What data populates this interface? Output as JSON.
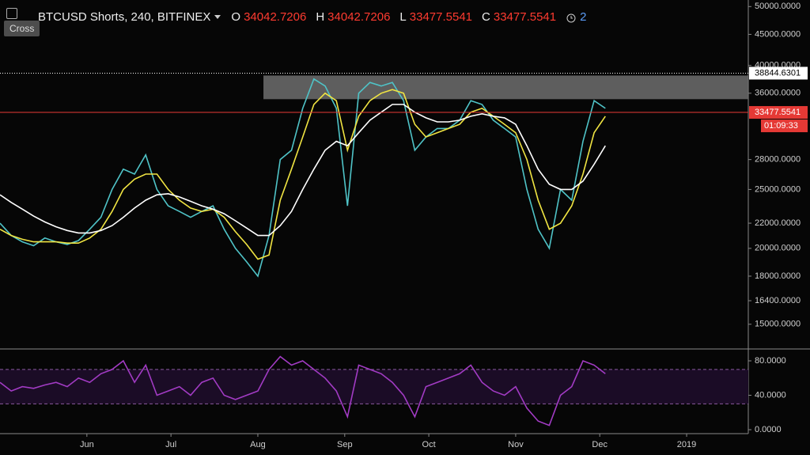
{
  "ui": {
    "tooltip": "Cross",
    "alerts": 2
  },
  "chart_data": [
    {
      "type": "line",
      "title": "BTCUSD Shorts, 240, BITFINEX",
      "ohlc": [
        {
          "label": "O",
          "value": 34042.7206
        },
        {
          "label": "H",
          "value": 34042.7206
        },
        {
          "label": "L",
          "value": 33477.5541
        },
        {
          "label": "C",
          "value": 33477.5541
        }
      ],
      "log_y": true,
      "x": [
        0,
        4,
        8,
        12,
        16,
        20,
        24,
        28,
        32,
        36,
        40,
        44,
        48,
        52,
        56,
        60,
        64,
        68,
        72,
        76,
        80,
        84,
        88,
        92,
        96,
        100,
        104,
        108,
        112,
        116,
        120,
        124,
        128,
        132,
        136,
        140,
        144,
        148,
        152,
        156,
        160,
        164,
        168,
        172,
        176,
        180,
        184,
        188,
        192,
        196,
        200,
        204,
        208,
        212,
        216
      ],
      "xlim": [
        0,
        267
      ],
      "ylim": [
        13700,
        50800
      ],
      "yticks": [
        {
          "value": 50000,
          "label": "50000.0000"
        },
        {
          "value": 45000,
          "label": "45000.0000"
        },
        {
          "value": 40000,
          "label": "40000.0000"
        },
        {
          "value": 36000,
          "label": "36000.0000"
        },
        {
          "value": 28000,
          "label": "28000.0000"
        },
        {
          "value": 25000,
          "label": "25000.0000"
        },
        {
          "value": 22000,
          "label": "22000.0000"
        },
        {
          "value": 20000,
          "label": "20000.0000"
        },
        {
          "value": 18000,
          "label": "18000.0000"
        },
        {
          "value": 16400,
          "label": "16400.0000"
        },
        {
          "value": 15000,
          "label": "15000.0000"
        }
      ],
      "zone": {
        "x": [
          94,
          267
        ],
        "y": [
          35200,
          38500
        ],
        "color": "#6e6e6e"
      },
      "hlines": [
        {
          "value": 38844.6301,
          "color": "#ffffff",
          "style": "dotted"
        },
        {
          "value": 33477.5541,
          "color": "#e53935",
          "style": "solid",
          "countdown": "01:09:33"
        }
      ],
      "series": [
        {
          "color": "#4fc3c7",
          "values": [
            22000,
            21000,
            20500,
            20200,
            20800,
            20500,
            20300,
            20600,
            21500,
            22500,
            25000,
            27000,
            26500,
            28500,
            25000,
            23500,
            23000,
            22500,
            23000,
            23500,
            21500,
            20000,
            19000,
            18000,
            21000,
            28000,
            29000,
            34000,
            38000,
            37000,
            34000,
            23500,
            36000,
            37500,
            37000,
            37500,
            35000,
            29000,
            30500,
            31500,
            31500,
            32500,
            35000,
            34500,
            32500,
            31500,
            30500,
            25000,
            21500,
            20000,
            25000,
            24000,
            30000,
            35000,
            34000
          ]
        },
        {
          "color": "#f0e442",
          "values": [
            21500,
            21000,
            20700,
            20500,
            20500,
            20500,
            20400,
            20400,
            20800,
            21500,
            23000,
            25000,
            26000,
            26500,
            26500,
            25000,
            24000,
            23300,
            23000,
            23200,
            22500,
            21300,
            20300,
            19200,
            19500,
            24000,
            27000,
            30500,
            34500,
            36000,
            35000,
            29000,
            33000,
            35000,
            36000,
            36500,
            36000,
            32000,
            30500,
            31000,
            31500,
            32000,
            33500,
            34000,
            33000,
            32000,
            31000,
            28000,
            24000,
            21500,
            22000,
            23500,
            26500,
            31000,
            33000
          ]
        },
        {
          "color": "#ffffff",
          "values": [
            24500,
            23800,
            23200,
            22600,
            22100,
            21700,
            21400,
            21200,
            21200,
            21400,
            21800,
            22500,
            23300,
            24000,
            24500,
            24600,
            24300,
            23900,
            23500,
            23200,
            22800,
            22200,
            21600,
            21000,
            21000,
            21800,
            23000,
            25000,
            27000,
            29000,
            30000,
            29500,
            31000,
            32500,
            33500,
            34500,
            34500,
            33500,
            32800,
            32300,
            32300,
            32500,
            33000,
            33300,
            33000,
            32800,
            32000,
            29500,
            27000,
            25500,
            25000,
            25000,
            25800,
            27500,
            29500
          ]
        }
      ]
    },
    {
      "type": "line",
      "x": [
        0,
        4,
        8,
        12,
        16,
        20,
        24,
        28,
        32,
        36,
        40,
        44,
        48,
        52,
        56,
        60,
        64,
        68,
        72,
        76,
        80,
        84,
        88,
        92,
        96,
        100,
        104,
        108,
        112,
        116,
        120,
        124,
        128,
        132,
        136,
        140,
        144,
        148,
        152,
        156,
        160,
        164,
        168,
        172,
        176,
        180,
        184,
        188,
        192,
        196,
        200,
        204,
        208,
        212,
        216
      ],
      "xlim": [
        0,
        267
      ],
      "xticks": [
        {
          "value": 31,
          "label": "Jun"
        },
        {
          "value": 61,
          "label": "Jul"
        },
        {
          "value": 92,
          "label": "Aug"
        },
        {
          "value": 123,
          "label": "Sep"
        },
        {
          "value": 153,
          "label": "Oct"
        },
        {
          "value": 184,
          "label": "Nov"
        },
        {
          "value": 214,
          "label": "Dec"
        },
        {
          "value": 245,
          "label": "2019"
        }
      ],
      "ylim": [
        -4.6,
        93.8
      ],
      "yticks": [
        {
          "value": 80,
          "label": "80.0000"
        },
        {
          "value": 40,
          "label": "40.0000"
        },
        {
          "value": 0,
          "label": "0.0000"
        }
      ],
      "band": [
        30,
        70
      ],
      "series": [
        {
          "color": "#a23bc4",
          "values": [
            55,
            45,
            50,
            48,
            52,
            55,
            50,
            60,
            55,
            65,
            70,
            80,
            55,
            75,
            40,
            45,
            50,
            40,
            55,
            60,
            40,
            35,
            40,
            45,
            70,
            85,
            75,
            80,
            70,
            60,
            45,
            15,
            75,
            70,
            65,
            55,
            40,
            15,
            50,
            55,
            60,
            65,
            75,
            55,
            45,
            40,
            50,
            25,
            10,
            5,
            40,
            50,
            80,
            75,
            65
          ]
        }
      ]
    }
  ]
}
